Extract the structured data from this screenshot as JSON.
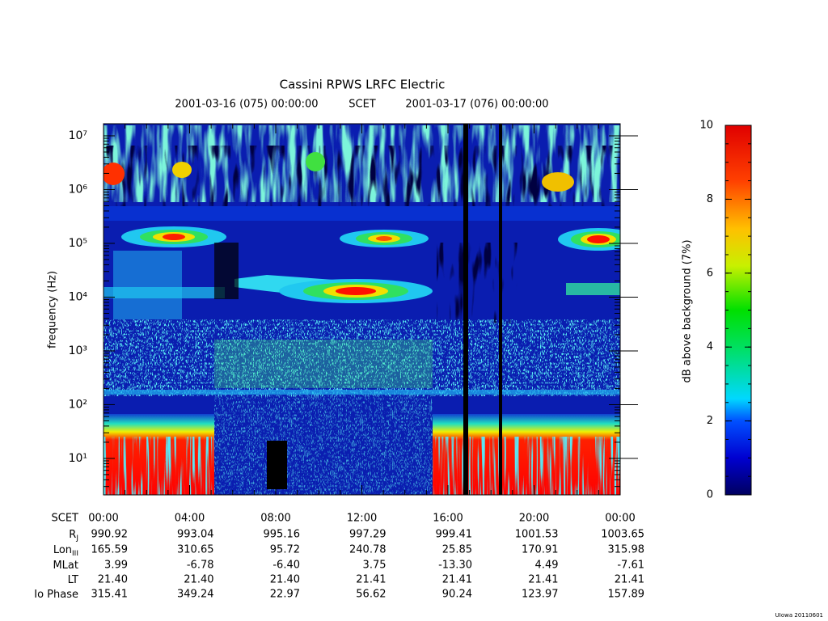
{
  "chart_data": {
    "type": "spectrogram",
    "title": "Cassini RPWS LRFC Electric",
    "subtitle_start": "2001-03-16 (075) 00:00:00",
    "subtitle_frame": "SCET",
    "subtitle_end": "2001-03-17 (076) 00:00:00",
    "y_label": "frequency (Hz)",
    "log_y": true,
    "ylim": [
      2.1,
      16800000
    ],
    "yticks": [
      {
        "value": 10,
        "label": "10¹"
      },
      {
        "value": 100,
        "label": "10²"
      },
      {
        "value": 1000,
        "label": "10³"
      },
      {
        "value": 10000,
        "label": "10⁴"
      },
      {
        "value": 100000,
        "label": "10⁵"
      },
      {
        "value": 1000000,
        "label": "10⁶"
      },
      {
        "value": 10000000,
        "label": "10⁷"
      }
    ],
    "xlim": [
      0,
      24
    ],
    "xticks": [
      {
        "value": 0,
        "label": "00:00"
      },
      {
        "value": 4,
        "label": "04:00"
      },
      {
        "value": 8,
        "label": "08:00"
      },
      {
        "value": 12,
        "label": "12:00"
      },
      {
        "value": 16,
        "label": "16:00"
      },
      {
        "value": 20,
        "label": "20:00"
      },
      {
        "value": 24,
        "label": "00:00"
      }
    ],
    "colorbar_label": "dB above background (7%)",
    "zlim": [
      0,
      10
    ],
    "zticks": [
      0,
      2,
      4,
      6,
      8,
      10
    ],
    "time_row_label": "SCET",
    "ephemeris": [
      {
        "label": "R",
        "sub": "J",
        "values": [
          "990.92",
          "993.04",
          "995.16",
          "997.29",
          "999.41",
          "1001.53",
          "1003.65"
        ]
      },
      {
        "label": "Lon",
        "sub": "III",
        "values": [
          "165.59",
          "310.65",
          "95.72",
          "240.78",
          "25.85",
          "170.91",
          "315.98"
        ]
      },
      {
        "label": "MLat",
        "values": [
          "3.99",
          "-6.78",
          "-6.40",
          "3.75",
          "-13.30",
          "4.49",
          "-7.61"
        ]
      },
      {
        "label": "LT",
        "values": [
          "21.40",
          "21.40",
          "21.40",
          "21.41",
          "21.41",
          "21.41",
          "21.41"
        ]
      },
      {
        "label": "Io Phase",
        "values": [
          "315.41",
          "349.24",
          "22.97",
          "56.62",
          "90.24",
          "123.97",
          "157.89"
        ]
      }
    ],
    "footer": "UIowa 20110601"
  }
}
